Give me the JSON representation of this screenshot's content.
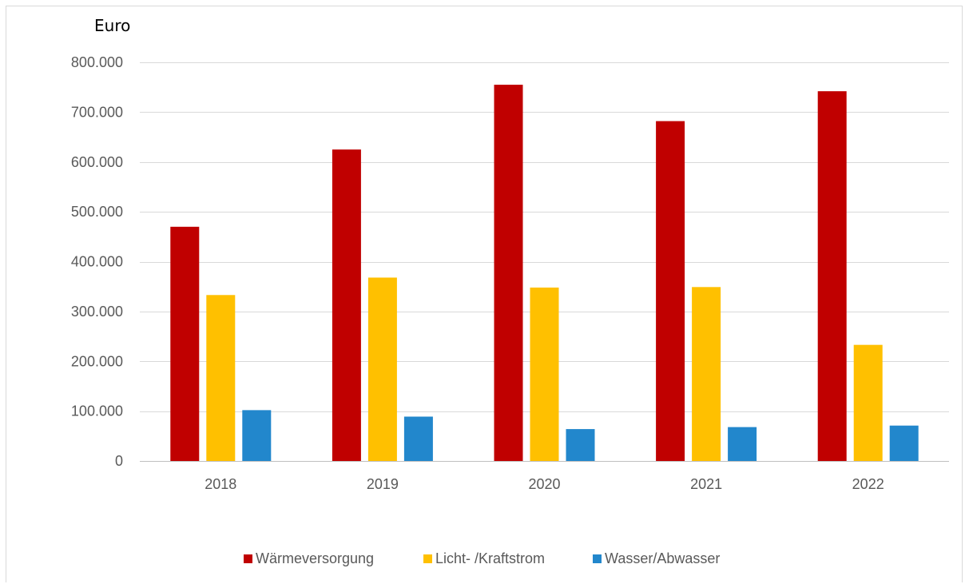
{
  "chart_data": {
    "type": "bar",
    "ylabel": "Euro",
    "categories": [
      "2018",
      "2019",
      "2020",
      "2021",
      "2022"
    ],
    "series": [
      {
        "name": "Wärmeversorgung",
        "color": "#c00000",
        "values": [
          470000,
          625000,
          755000,
          682000,
          742000
        ]
      },
      {
        "name": "Licht- /Kraftstrom",
        "color": "#ffc000",
        "values": [
          333000,
          368000,
          348000,
          349000,
          233000
        ]
      },
      {
        "name": "Wasser/Abwasser",
        "color": "#2287cc",
        "values": [
          102000,
          89000,
          64000,
          68000,
          71000
        ]
      }
    ],
    "ylim": [
      0,
      800000
    ],
    "yticks": [
      0,
      100000,
      200000,
      300000,
      400000,
      500000,
      600000,
      700000,
      800000
    ],
    "ytick_labels": [
      "0",
      "100.000",
      "200.000",
      "300.000",
      "400.000",
      "500.000",
      "600.000",
      "700.000",
      "800.000"
    ],
    "grid": true,
    "legend_position": "bottom"
  }
}
